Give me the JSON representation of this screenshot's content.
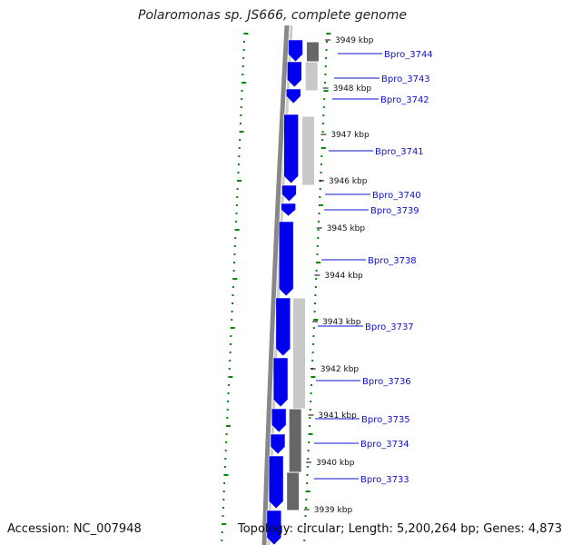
{
  "title": "Polaromonas sp. JS666, complete genome",
  "accession_label": "Accession: NC_007948",
  "summary_label": "Topology: circular; Length: 5,200,264 bp; Genes: 4,873",
  "colors": {
    "forward_cds": "#0000ee",
    "gc_content_dots": "#008800",
    "backbone_dark": "#888888",
    "backbone_light": "#cccccc",
    "feature_light": "#c8c8c8",
    "feature_dark": "#666666",
    "label_line": "#1010cc",
    "label_text": "#1010cc"
  },
  "ticks": [
    {
      "label": "3949 kbp"
    },
    {
      "label": "3948 kbp"
    },
    {
      "label": "3947 kbp"
    },
    {
      "label": "3946 kbp"
    },
    {
      "label": "3945 kbp"
    },
    {
      "label": "3944 kbp"
    },
    {
      "label": "3943 kbp"
    },
    {
      "label": "3942 kbp"
    },
    {
      "label": "3941 kbp"
    },
    {
      "label": "3940 kbp"
    },
    {
      "label": "3939 kbp"
    }
  ],
  "genes": [
    {
      "name": "Bpro_3744"
    },
    {
      "name": "Bpro_3743"
    },
    {
      "name": "Bpro_3742"
    },
    {
      "name": "Bpro_3741"
    },
    {
      "name": "Bpro_3740"
    },
    {
      "name": "Bpro_3739"
    },
    {
      "name": "Bpro_3738"
    },
    {
      "name": "Bpro_3737"
    },
    {
      "name": "Bpro_3736"
    },
    {
      "name": "Bpro_3735"
    },
    {
      "name": "Bpro_3734"
    },
    {
      "name": "Bpro_3733"
    }
  ]
}
